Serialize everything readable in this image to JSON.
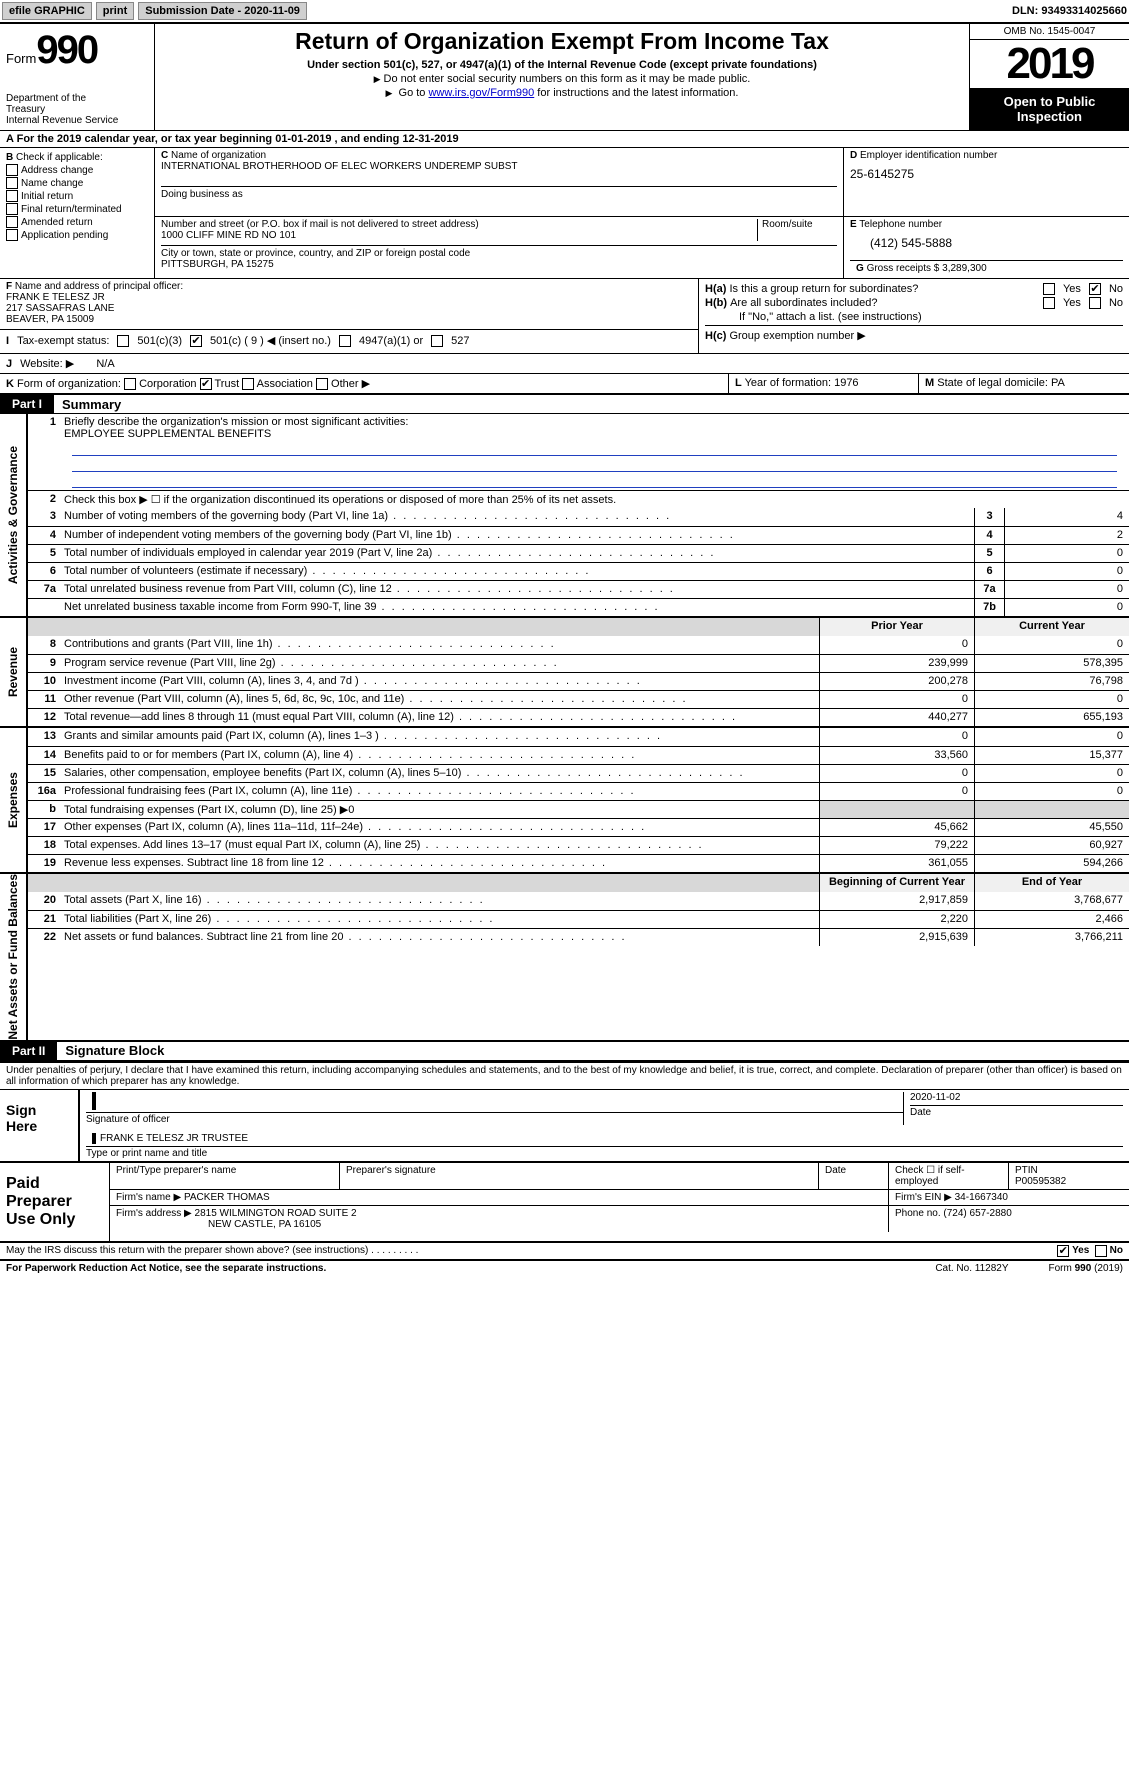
{
  "topbar": {
    "efile": "efile GRAPHIC",
    "print": "print",
    "subdate_label": "Submission Date - 2020-11-09",
    "dln": "DLN: 93493314025660"
  },
  "header": {
    "form_prefix": "Form",
    "form_num": "990",
    "dept": "Department of the Treasury\nInternal Revenue Service",
    "title": "Return of Organization Exempt From Income Tax",
    "sub": "Under section 501(c), 527, or 4947(a)(1) of the Internal Revenue Code (except private foundations)",
    "note1": "Do not enter social security numbers on this form as it may be made public.",
    "note2_pre": "Go to ",
    "note2_link": "www.irs.gov/Form990",
    "note2_post": " for instructions and the latest information.",
    "omb": "OMB No. 1545-0047",
    "year": "2019",
    "open": "Open to Public Inspection"
  },
  "period": "For the 2019 calendar year, or tax year beginning 01-01-2019   , and ending 12-31-2019",
  "b": {
    "label": "Check if applicable:",
    "addr": "Address change",
    "name": "Name change",
    "initial": "Initial return",
    "final": "Final return/terminated",
    "amended": "Amended return",
    "app": "Application pending"
  },
  "c": {
    "name_label": "Name of organization",
    "name": "INTERNATIONAL BROTHERHOOD OF ELEC WORKERS UNDEREMP SUBST",
    "dba_label": "Doing business as",
    "addr_label": "Number and street (or P.O. box if mail is not delivered to street address)",
    "room_label": "Room/suite",
    "addr": "1000 CLIFF MINE RD NO 101",
    "city_label": "City or town, state or province, country, and ZIP or foreign postal code",
    "city": "PITTSBURGH, PA  15275"
  },
  "d": {
    "label": "Employer identification number",
    "val": "25-6145275"
  },
  "e": {
    "label": "Telephone number",
    "val": "(412) 545-5888"
  },
  "g": {
    "label": "Gross receipts $",
    "val": "3,289,300"
  },
  "f": {
    "label": "Name and address of principal officer:",
    "name": "FRANK E TELESZ JR",
    "addr1": "217 SASSAFRAS LANE",
    "addr2": "BEAVER, PA  15009"
  },
  "h": {
    "a": "Is this a group return for subordinates?",
    "b": "Are all subordinates included?",
    "b_note": "If \"No,\" attach a list. (see instructions)",
    "c": "Group exemption number ▶",
    "yes": "Yes",
    "no": "No"
  },
  "i": {
    "label": "Tax-exempt status:",
    "opts": [
      "501(c)(3)",
      "501(c) ( 9 ) ◀ (insert no.)",
      "4947(a)(1) or",
      "527"
    ]
  },
  "j": {
    "label": "Website: ▶",
    "val": "N/A"
  },
  "k": {
    "label": "Form of organization:",
    "corp": "Corporation",
    "trust": "Trust",
    "assoc": "Association",
    "other": "Other ▶"
  },
  "l": {
    "label": "Year of formation:",
    "val": "1976"
  },
  "m": {
    "label": "State of legal domicile:",
    "val": "PA"
  },
  "part1": {
    "bar": "Part I",
    "title": "Summary"
  },
  "summary": {
    "q1": "Briefly describe the organization's mission or most significant activities:",
    "q1_val": "EMPLOYEE SUPPLEMENTAL BENEFITS",
    "q2": "Check this box ▶ ☐  if the organization discontinued its operations or disposed of more than 25% of its net assets.",
    "rows_ag": [
      {
        "n": "3",
        "t": "Number of voting members of the governing body (Part VI, line 1a)",
        "c": "3",
        "v": "4"
      },
      {
        "n": "4",
        "t": "Number of independent voting members of the governing body (Part VI, line 1b)",
        "c": "4",
        "v": "2"
      },
      {
        "n": "5",
        "t": "Total number of individuals employed in calendar year 2019 (Part V, line 2a)",
        "c": "5",
        "v": "0"
      },
      {
        "n": "6",
        "t": "Total number of volunteers (estimate if necessary)",
        "c": "6",
        "v": "0"
      },
      {
        "n": "7a",
        "t": "Total unrelated business revenue from Part VIII, column (C), line 12",
        "c": "7a",
        "v": "0"
      },
      {
        "n": "",
        "t": "Net unrelated business taxable income from Form 990-T, line 39",
        "c": "7b",
        "v": "0"
      }
    ],
    "prior_hdr": "Prior Year",
    "curr_hdr": "Current Year",
    "rows_rev": [
      {
        "n": "8",
        "t": "Contributions and grants (Part VIII, line 1h)",
        "p": "0",
        "c": "0"
      },
      {
        "n": "9",
        "t": "Program service revenue (Part VIII, line 2g)",
        "p": "239,999",
        "c": "578,395"
      },
      {
        "n": "10",
        "t": "Investment income (Part VIII, column (A), lines 3, 4, and 7d )",
        "p": "200,278",
        "c": "76,798"
      },
      {
        "n": "11",
        "t": "Other revenue (Part VIII, column (A), lines 5, 6d, 8c, 9c, 10c, and 11e)",
        "p": "0",
        "c": "0"
      },
      {
        "n": "12",
        "t": "Total revenue—add lines 8 through 11 (must equal Part VIII, column (A), line 12)",
        "p": "440,277",
        "c": "655,193"
      }
    ],
    "rows_exp": [
      {
        "n": "13",
        "t": "Grants and similar amounts paid (Part IX, column (A), lines 1–3 )",
        "p": "0",
        "c": "0"
      },
      {
        "n": "14",
        "t": "Benefits paid to or for members (Part IX, column (A), line 4)",
        "p": "33,560",
        "c": "15,377"
      },
      {
        "n": "15",
        "t": "Salaries, other compensation, employee benefits (Part IX, column (A), lines 5–10)",
        "p": "0",
        "c": "0"
      },
      {
        "n": "16a",
        "t": "Professional fundraising fees (Part IX, column (A), line 11e)",
        "p": "0",
        "c": "0"
      },
      {
        "n": "b",
        "t": "Total fundraising expenses (Part IX, column (D), line 25) ▶0",
        "p": "",
        "c": "",
        "shade": true
      },
      {
        "n": "17",
        "t": "Other expenses (Part IX, column (A), lines 11a–11d, 11f–24e)",
        "p": "45,662",
        "c": "45,550"
      },
      {
        "n": "18",
        "t": "Total expenses. Add lines 13–17 (must equal Part IX, column (A), line 25)",
        "p": "79,222",
        "c": "60,927"
      },
      {
        "n": "19",
        "t": "Revenue less expenses. Subtract line 18 from line 12",
        "p": "361,055",
        "c": "594,266"
      }
    ],
    "boy_hdr": "Beginning of Current Year",
    "eoy_hdr": "End of Year",
    "rows_na": [
      {
        "n": "20",
        "t": "Total assets (Part X, line 16)",
        "p": "2,917,859",
        "c": "3,768,677"
      },
      {
        "n": "21",
        "t": "Total liabilities (Part X, line 26)",
        "p": "2,220",
        "c": "2,466"
      },
      {
        "n": "22",
        "t": "Net assets or fund balances. Subtract line 21 from line 20",
        "p": "2,915,639",
        "c": "3,766,211"
      }
    ]
  },
  "tabs": {
    "ag": "Activities & Governance",
    "rev": "Revenue",
    "exp": "Expenses",
    "na": "Net Assets or Fund Balances"
  },
  "part2": {
    "bar": "Part II",
    "title": "Signature Block"
  },
  "sig": {
    "penalties": "Under penalties of perjury, I declare that I have examined this return, including accompanying schedules and statements, and to the best of my knowledge and belief, it is true, correct, and complete. Declaration of preparer (other than officer) is based on all information of which preparer has any knowledge.",
    "sign_here": "Sign Here",
    "sig_officer": "Signature of officer",
    "date_lbl": "Date",
    "date_val": "2020-11-02",
    "name_title": "FRANK E TELESZ JR  TRUSTEE",
    "type_name": "Type or print name and title"
  },
  "prep": {
    "lbl": "Paid Preparer Use Only",
    "h1": "Print/Type preparer's name",
    "h2": "Preparer's signature",
    "h3": "Date",
    "h4": "Check ☐ if self-employed",
    "h5": "PTIN",
    "ptin": "P00595382",
    "firm_name_lbl": "Firm's name    ▶",
    "firm_name": "PACKER THOMAS",
    "firm_ein_lbl": "Firm's EIN ▶",
    "firm_ein": "34-1667340",
    "firm_addr_lbl": "Firm's address ▶",
    "firm_addr": "2815 WILMINGTON ROAD SUITE 2",
    "firm_city": "NEW CASTLE, PA  16105",
    "phone_lbl": "Phone no.",
    "phone": "(724) 657-2880"
  },
  "discuss": {
    "q": "May the IRS discuss this return with the preparer shown above? (see instructions)",
    "yes": "Yes",
    "no": "No"
  },
  "footer": {
    "pra": "For Paperwork Reduction Act Notice, see the separate instructions.",
    "cat": "Cat. No. 11282Y",
    "form": "Form 990 (2019)"
  }
}
